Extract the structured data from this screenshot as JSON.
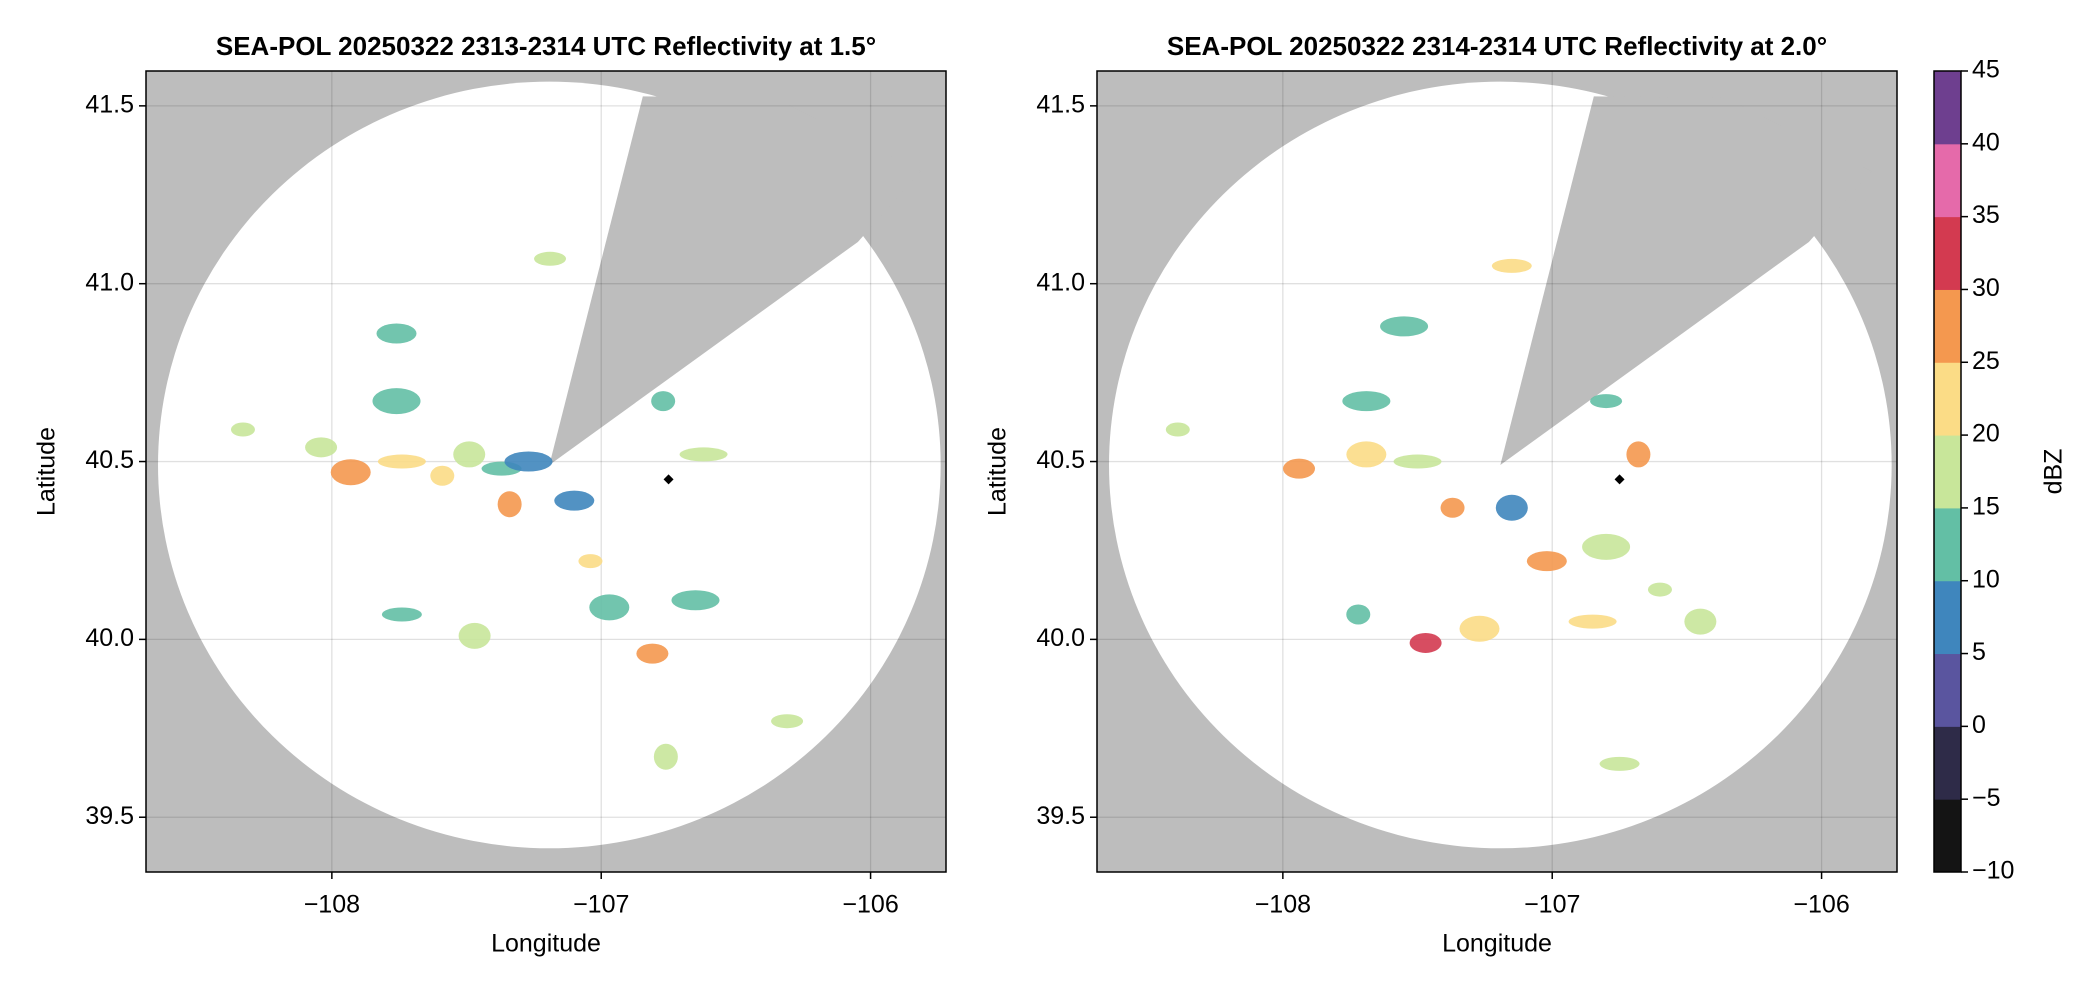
{
  "chart_data": [
    {
      "type": "radar-ppi",
      "title": "SEA-POL 20250322 2313-2314 UTC Reflectivity at 1.5°",
      "x_label": "Longitude",
      "y_label": "Latitude",
      "xlim": [
        -108.69,
        -105.72
      ],
      "ylim": [
        39.346,
        41.598
      ],
      "xticks": [
        {
          "value": -108,
          "label": "−108"
        },
        {
          "value": -107,
          "label": "−107"
        },
        {
          "value": -106,
          "label": "−106"
        }
      ],
      "yticks": [
        39.5,
        {
          "value": 40,
          "label": "40.0"
        },
        40.5,
        {
          "value": 41,
          "label": "41.0"
        },
        41.5
      ],
      "grid": true,
      "marker": {
        "lon": -106.75,
        "lat": 40.45
      },
      "echoes": {
        "lon": [
          -108.33,
          -108.04,
          -107.93,
          -107.74,
          -107.59,
          -107.49,
          -107.37,
          -107.27,
          -107.34,
          -107.19,
          -107.76,
          -107.76,
          -107.04,
          -106.81,
          -106.97,
          -106.62,
          -106.77,
          -107.47,
          -107.74,
          -106.65,
          -106.76,
          -106.31,
          -107.1
        ],
        "lat": [
          40.59,
          40.54,
          40.47,
          40.5,
          40.46,
          40.52,
          40.48,
          40.5,
          40.38,
          41.07,
          40.86,
          40.67,
          40.22,
          39.96,
          40.09,
          40.52,
          40.67,
          40.01,
          40.07,
          40.11,
          39.67,
          39.77,
          40.39
        ],
        "dbz": [
          15,
          18,
          28,
          20,
          22,
          15,
          10,
          5,
          25,
          15,
          12,
          14,
          20,
          25,
          14,
          18,
          10,
          15,
          12,
          12,
          18,
          17,
          8
        ]
      }
    },
    {
      "type": "radar-ppi",
      "title": "SEA-POL 20250322 2314-2314 UTC Reflectivity at 2.0°",
      "x_label": "Longitude",
      "y_label": "Latitude",
      "xlim": [
        -108.69,
        -105.72
      ],
      "ylim": [
        39.346,
        41.598
      ],
      "xticks": [
        {
          "value": -108,
          "label": "−108"
        },
        {
          "value": -107,
          "label": "−107"
        },
        {
          "value": -106,
          "label": "−106"
        }
      ],
      "yticks": [
        39.5,
        {
          "value": 40,
          "label": "40.0"
        },
        40.5,
        {
          "value": 41,
          "label": "41.0"
        },
        41.5
      ],
      "grid": true,
      "marker": {
        "lon": -106.75,
        "lat": 40.45
      },
      "echoes": {
        "lon": [
          -108.39,
          -107.94,
          -107.69,
          -107.5,
          -107.37,
          -107.15,
          -107.15,
          -107.69,
          -106.68,
          -106.8,
          -107.02,
          -106.8,
          -106.6,
          -107.47,
          -107.27,
          -106.85,
          -107.72,
          -106.45,
          -106.75,
          -107.55
        ],
        "lat": [
          40.59,
          40.48,
          40.52,
          40.5,
          40.37,
          40.37,
          41.05,
          40.67,
          40.52,
          40.67,
          40.22,
          40.26,
          40.14,
          39.99,
          40.03,
          40.05,
          40.07,
          40.05,
          39.65,
          40.88
        ],
        "dbz": [
          16,
          25,
          22,
          18,
          28,
          5,
          20,
          12,
          28,
          12,
          28,
          15,
          15,
          32,
          20,
          22,
          14,
          15,
          17,
          10
        ]
      },
      "colorbar": {
        "label": "dBZ",
        "lim": [
          -10,
          45
        ],
        "ticks": [
          {
            "value": -10,
            "label": "−10"
          },
          {
            "value": -5,
            "label": "−5"
          },
          0,
          5,
          10,
          15,
          20,
          25,
          30,
          35,
          40,
          45
        ],
        "colors": [
          "#141414",
          "#2e2b48",
          "#5a559f",
          "#3f86bd",
          "#63bfa5",
          "#c8e69a",
          "#fbdc86",
          "#f4984f",
          "#d33a50",
          "#e56aaa",
          "#6e3f8f"
        ]
      }
    }
  ]
}
